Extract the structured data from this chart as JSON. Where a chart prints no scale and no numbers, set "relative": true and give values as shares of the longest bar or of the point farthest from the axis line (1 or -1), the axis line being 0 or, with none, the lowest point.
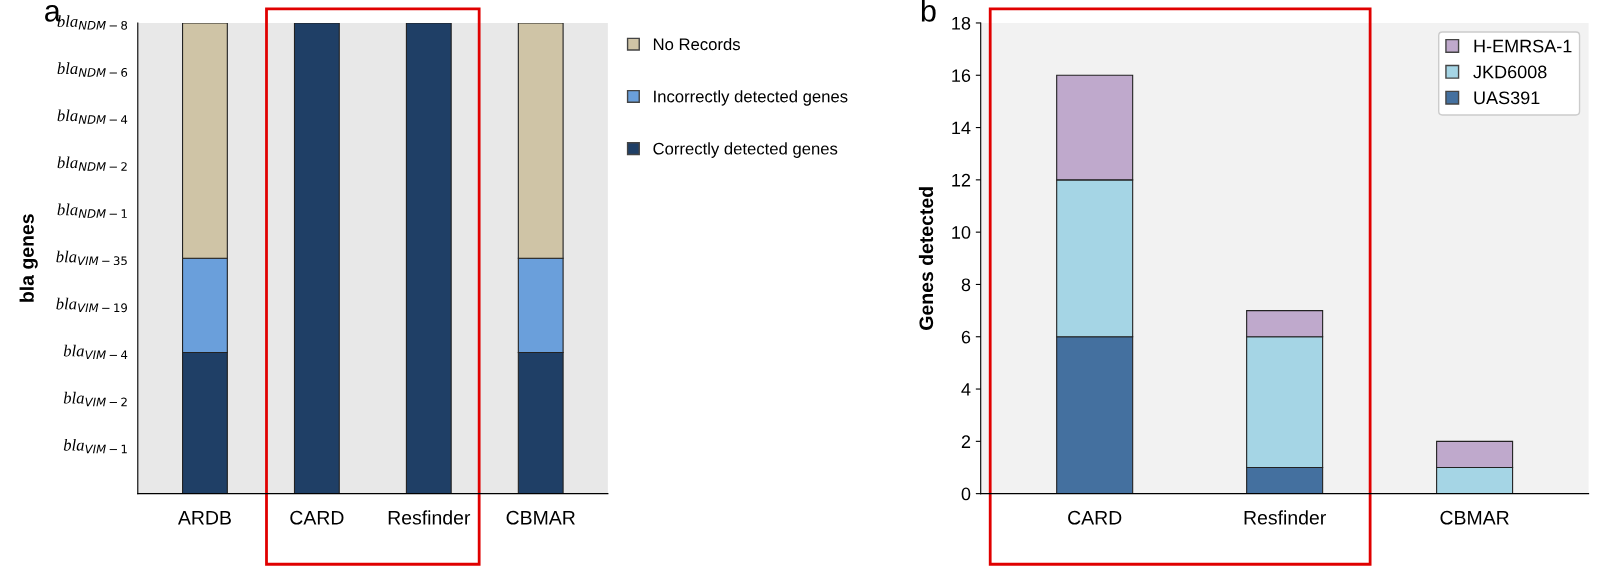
{
  "chart_data": [
    {
      "type": "bar",
      "stacked": true,
      "relative": true,
      "ylabel": "bla genes",
      "annotations": [
        "a",
        "bla$_{VIM−1}$",
        "bla$_{VIM−2}$",
        "bla$_{VIM−4}$",
        "bla$_{VIM−19}$",
        "bla$_{VIM−35}$",
        "bla$_{NDM−1}$",
        "bla$_{NDM−2}$",
        "bla$_{NDM−4}$",
        "bla$_{NDM−6}$",
        "bla$_{NDM−8}$"
      ],
      "categories": [
        "ARDB",
        "CARD",
        "Resfinder",
        "CBMAR"
      ],
      "legend": "right",
      "grid": false,
      "series": [
        {
          "name": "Correctly detected genes",
          "color": "#1f3f66",
          "values": [
            0.3,
            1,
            1,
            0.3
          ]
        },
        {
          "name": "Incorrectly detected genes",
          "color": "#6a9fdb",
          "values": [
            0.2,
            0,
            0,
            0.2
          ]
        },
        {
          "name": "No Records",
          "color": "#cfc4a6",
          "values": [
            0.5,
            0,
            0,
            0.5
          ]
        }
      ]
    },
    {
      "type": "bar",
      "stacked": true,
      "ylabel": "Genes detected",
      "annotations": [
        "b"
      ],
      "categories": [
        "CARD",
        "Resfinder",
        "CBMAR"
      ],
      "ylim": [
        0,
        18
      ],
      "yticks": [
        0,
        2,
        4,
        6,
        8,
        10,
        12,
        14,
        16,
        18
      ],
      "legend": "top right",
      "grid": false,
      "series": [
        {
          "name": "UAS391",
          "color": "#44709f",
          "values": [
            6,
            1,
            0
          ]
        },
        {
          "name": "JKD6008",
          "color": "#a5d5e5",
          "values": [
            6,
            5,
            1
          ]
        },
        {
          "name": "H-EMRSA-1",
          "color": "#bfa9cc",
          "values": [
            4,
            1,
            1
          ]
        }
      ]
    }
  ]
}
